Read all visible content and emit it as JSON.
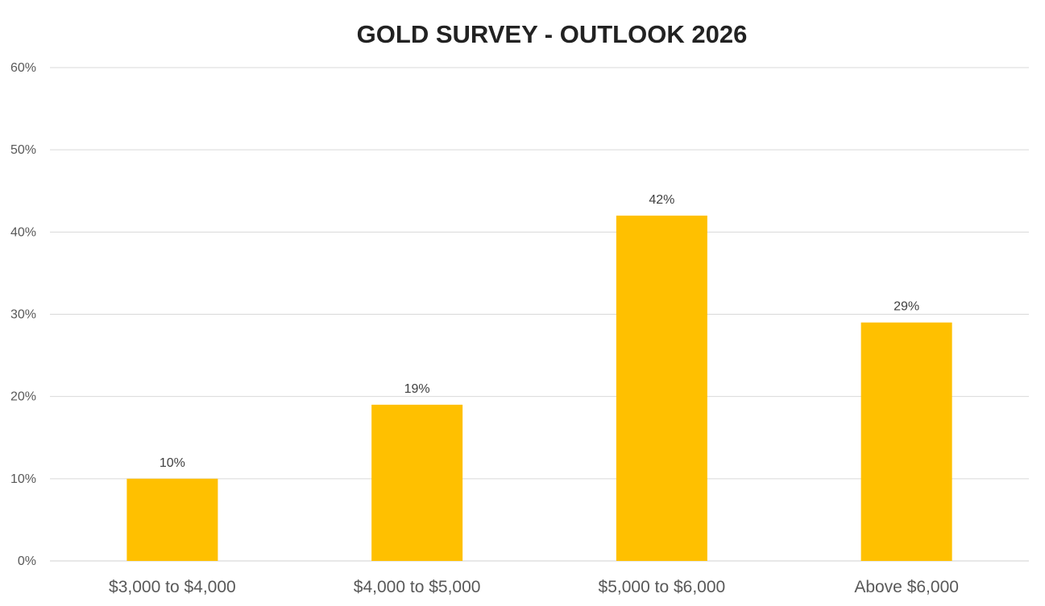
{
  "chart_data": {
    "type": "bar",
    "title": "GOLD SURVEY - OUTLOOK 2026",
    "xlabel": "",
    "ylabel": "",
    "categories": [
      "$3,000 to $4,000",
      "$4,000 to $5,000",
      "$5,000 to $6,000",
      "Above $6,000"
    ],
    "values": [
      10,
      19,
      42,
      29
    ],
    "data_labels": [
      "10%",
      "19%",
      "42%",
      "29%"
    ],
    "ylim": [
      0,
      60
    ],
    "yticks": [
      0,
      10,
      20,
      30,
      40,
      50,
      60
    ],
    "ytick_labels": [
      "0%",
      "10%",
      "20%",
      "30%",
      "40%",
      "50%",
      "60%"
    ],
    "grid": true,
    "legend": "none",
    "colors": {
      "bar": "#FFC000",
      "grid": "#D9D9D9",
      "title": "#222222",
      "tick": "#595959"
    }
  }
}
